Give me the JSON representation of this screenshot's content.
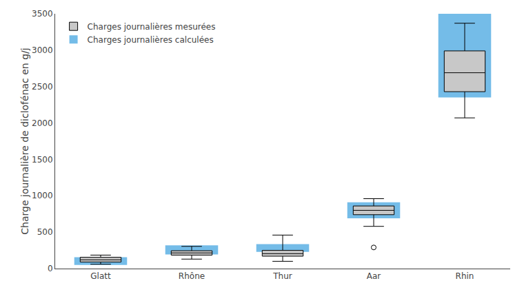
{
  "chart_data": {
    "type": "box",
    "categories": [
      "Glatt",
      "Rhône",
      "Thur",
      "Aar",
      "Rhin"
    ],
    "ylabel": "Charge journalière de diclofénac en g/j",
    "ylim": [
      0,
      3500
    ],
    "yticks": [
      0,
      500,
      1000,
      1500,
      2000,
      2500,
      3000,
      3500
    ],
    "grid": false,
    "legend": "upper left",
    "series": [
      {
        "name": "Charges journalières mesurées",
        "type": "box",
        "color": "#c8c8c8",
        "whislo": [
          60,
          130,
          100,
          580,
          2070
        ],
        "q1": [
          90,
          185,
          170,
          740,
          2430
        ],
        "med": [
          120,
          215,
          205,
          800,
          2690
        ],
        "q3": [
          155,
          245,
          250,
          860,
          2990
        ],
        "whishi": [
          185,
          305,
          460,
          960,
          3370
        ],
        "fliers": [
          [],
          [],
          [],
          [
            290
          ],
          []
        ]
      },
      {
        "name": "Charges journalières calculées",
        "type": "bar",
        "color": "#74bce8",
        "q50": [
          50,
          195,
          230,
          690,
          2350
        ],
        "q90": [
          155,
          320,
          335,
          910,
          3500
        ]
      }
    ]
  }
}
